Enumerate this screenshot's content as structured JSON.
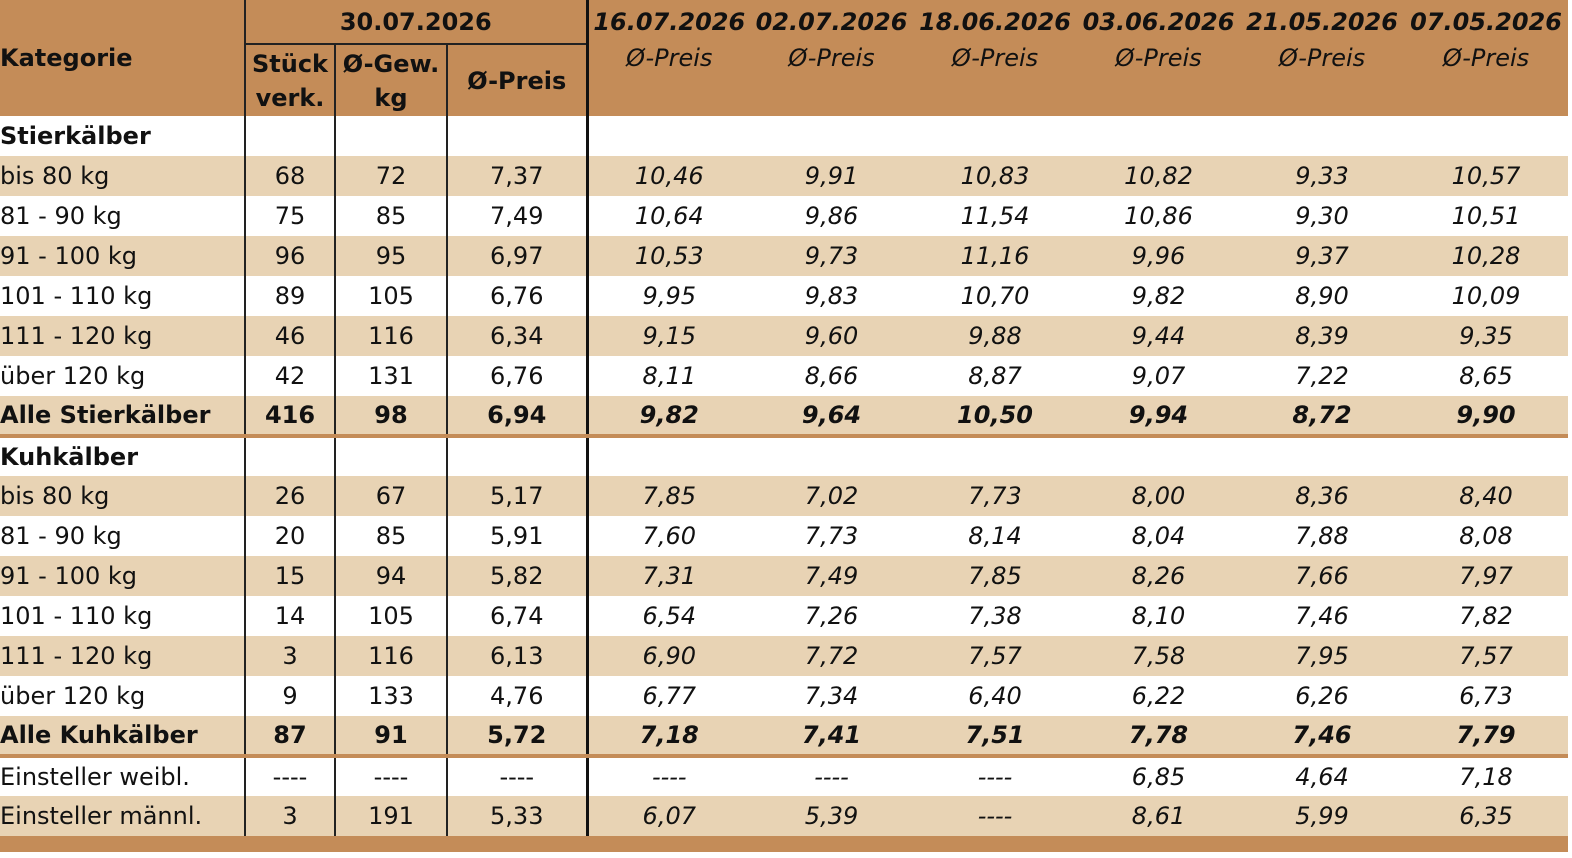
{
  "header": {
    "kategorie": "Kategorie",
    "current_date": "30.07.2026",
    "stueck_line1": "Stück",
    "stueck_line2": "verk.",
    "gew_line1": "Ø-Gew.",
    "gew_line2": "kg",
    "preis": "Ø-Preis",
    "history": [
      {
        "date": "16.07.2026",
        "label": "Ø-Preis"
      },
      {
        "date": "02.07.2026",
        "label": "Ø-Preis"
      },
      {
        "date": "18.06.2026",
        "label": "Ø-Preis"
      },
      {
        "date": "03.06.2026",
        "label": "Ø-Preis"
      },
      {
        "date": "21.05.2026",
        "label": "Ø-Preis"
      },
      {
        "date": "07.05.2026",
        "label": "Ø-Preis"
      }
    ]
  },
  "stierkaelber": {
    "title": "Stierkälber",
    "rows": [
      {
        "cat": "bis 80 kg",
        "stueck": "68",
        "gew": "72",
        "preis": "7,37",
        "hist": [
          "10,46",
          "9,91",
          "10,83",
          "10,82",
          "9,33",
          "10,57"
        ]
      },
      {
        "cat": "81 - 90 kg",
        "stueck": "75",
        "gew": "85",
        "preis": "7,49",
        "hist": [
          "10,64",
          "9,86",
          "11,54",
          "10,86",
          "9,30",
          "10,51"
        ]
      },
      {
        "cat": "91 - 100 kg",
        "stueck": "96",
        "gew": "95",
        "preis": "6,97",
        "hist": [
          "10,53",
          "9,73",
          "11,16",
          "9,96",
          "9,37",
          "10,28"
        ]
      },
      {
        "cat": "101 - 110 kg",
        "stueck": "89",
        "gew": "105",
        "preis": "6,76",
        "hist": [
          "9,95",
          "9,83",
          "10,70",
          "9,82",
          "8,90",
          "10,09"
        ]
      },
      {
        "cat": "111 - 120 kg",
        "stueck": "46",
        "gew": "116",
        "preis": "6,34",
        "hist": [
          "9,15",
          "9,60",
          "9,88",
          "9,44",
          "8,39",
          "9,35"
        ]
      },
      {
        "cat": "über 120 kg",
        "stueck": "42",
        "gew": "131",
        "preis": "6,76",
        "hist": [
          "8,11",
          "8,66",
          "8,87",
          "9,07",
          "7,22",
          "8,65"
        ]
      }
    ],
    "total": {
      "cat": "Alle Stierkälber",
      "stueck": "416",
      "gew": "98",
      "preis": "6,94",
      "hist": [
        "9,82",
        "9,64",
        "10,50",
        "9,94",
        "8,72",
        "9,90"
      ]
    }
  },
  "kuhkaelber": {
    "title": "Kuhkälber",
    "rows": [
      {
        "cat": "bis 80 kg",
        "stueck": "26",
        "gew": "67",
        "preis": "5,17",
        "hist": [
          "7,85",
          "7,02",
          "7,73",
          "8,00",
          "8,36",
          "8,40"
        ]
      },
      {
        "cat": "81 - 90 kg",
        "stueck": "20",
        "gew": "85",
        "preis": "5,91",
        "hist": [
          "7,60",
          "7,73",
          "8,14",
          "8,04",
          "7,88",
          "8,08"
        ]
      },
      {
        "cat": "91 - 100 kg",
        "stueck": "15",
        "gew": "94",
        "preis": "5,82",
        "hist": [
          "7,31",
          "7,49",
          "7,85",
          "8,26",
          "7,66",
          "7,97"
        ]
      },
      {
        "cat": "101 - 110 kg",
        "stueck": "14",
        "gew": "105",
        "preis": "6,74",
        "hist": [
          "6,54",
          "7,26",
          "7,38",
          "8,10",
          "7,46",
          "7,82"
        ]
      },
      {
        "cat": "111 - 120 kg",
        "stueck": "3",
        "gew": "116",
        "preis": "6,13",
        "hist": [
          "6,90",
          "7,72",
          "7,57",
          "7,58",
          "7,95",
          "7,57"
        ]
      },
      {
        "cat": "über 120 kg",
        "stueck": "9",
        "gew": "133",
        "preis": "4,76",
        "hist": [
          "6,77",
          "7,34",
          "6,40",
          "6,22",
          "6,26",
          "6,73"
        ]
      }
    ],
    "total": {
      "cat": "Alle Kuhkälber",
      "stueck": "87",
      "gew": "91",
      "preis": "5,72",
      "hist": [
        "7,18",
        "7,41",
        "7,51",
        "7,78",
        "7,46",
        "7,79"
      ]
    }
  },
  "einsteller": [
    {
      "cat": "Einsteller weibl.",
      "stueck": "----",
      "gew": "----",
      "preis": "----",
      "hist": [
        "----",
        "----",
        "----",
        "6,85",
        "4,64",
        "7,18"
      ]
    },
    {
      "cat": "Einsteller männl.",
      "stueck": "3",
      "gew": "191",
      "preis": "5,33",
      "hist": [
        "6,07",
        "5,39",
        "----",
        "8,61",
        "5,99",
        "6,35"
      ]
    }
  ],
  "colors": {
    "header": "#c48c58",
    "shade": "#e8d3b4",
    "white": "#ffffff"
  }
}
